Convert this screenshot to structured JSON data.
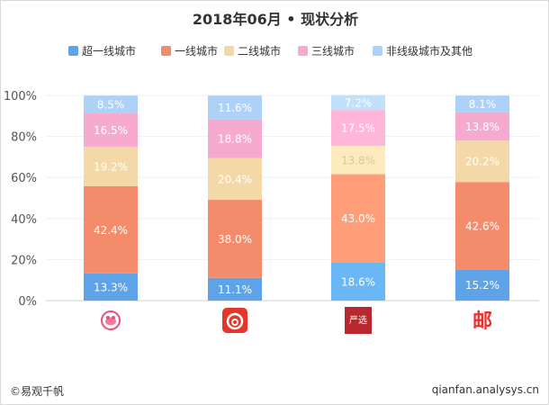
{
  "chart_data": {
    "type": "bar",
    "stacked": true,
    "percent": true,
    "title": "2018年06月 • 现状分析",
    "xlabel": "",
    "ylabel": "",
    "ylim": [
      0,
      100
    ],
    "y_ticks": [
      "0%",
      "20%",
      "40%",
      "60%",
      "80%",
      "100%"
    ],
    "categories": [
      "",
      "",
      "",
      ""
    ],
    "legend_position": "top",
    "series": [
      {
        "name": "超一线城市",
        "color": "#5ea3e8",
        "values": [
          13.3,
          11.1,
          18.6,
          15.2
        ],
        "labels": [
          "13.3%",
          "11.1%",
          "18.6%",
          "15.2%"
        ]
      },
      {
        "name": "一线城市",
        "color": "#f48c6c",
        "values": [
          42.4,
          38.0,
          43.0,
          42.6
        ],
        "labels": [
          "42.4%",
          "38.0%",
          "43.0%",
          "42.6%"
        ]
      },
      {
        "name": "二线城市",
        "color": "#f3d9a8",
        "values": [
          19.2,
          20.4,
          13.8,
          20.2
        ],
        "labels": [
          "19.2%",
          "20.4%",
          "13.8%",
          "20.2%"
        ]
      },
      {
        "name": "三线城市",
        "color": "#f7aad0",
        "values": [
          16.5,
          18.8,
          17.5,
          13.8
        ],
        "labels": [
          "16.5%",
          "18.8%",
          "17.5%",
          "13.8%"
        ]
      },
      {
        "name": "非线级城市及其他",
        "color": "#add1f7",
        "values": [
          8.5,
          11.6,
          7.2,
          8.1
        ],
        "labels": [
          "8.5%",
          "11.6%",
          "7.2%",
          "8.1%"
        ]
      }
    ],
    "bar_overrides": {
      "2": [
        {
          "color": "#6ab7f5"
        },
        {
          "color": "#ff9e79"
        },
        {
          "color": "#fdebbd",
          "label_color": "#dcc89a"
        },
        {
          "color": "#ffb6d8"
        },
        {
          "color": "#c1e0fb"
        }
      ]
    },
    "app_icons": [
      "pig-app-icon",
      "netease-music-app-icon",
      "yanxuan-app-icon",
      "post-app-icon"
    ],
    "app_icon_text": [
      "",
      "",
      "严选",
      "邮"
    ]
  },
  "footer": {
    "left": "©易观千帆",
    "right": "qianfan.analysys.cn"
  }
}
